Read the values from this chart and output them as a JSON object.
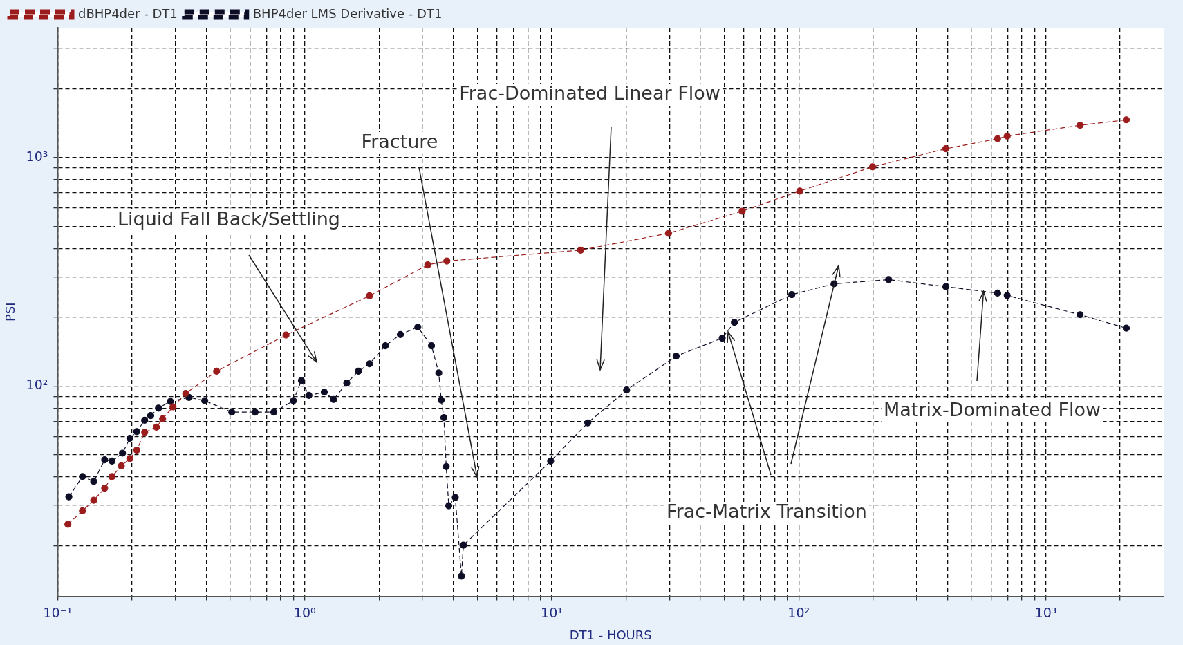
{
  "chart_data": {
    "type": "line",
    "xlabel": "DT1 - HOURS",
    "ylabel": "PSI",
    "log": "xy",
    "grid": true,
    "legend": "top left",
    "marker": "circle",
    "line_style": "dashed",
    "xlim": [
      0.1,
      3000
    ],
    "ylim": [
      12,
      3700
    ],
    "xticks": [
      {
        "value": 0.1,
        "label": "10⁻¹"
      },
      {
        "value": 0.2,
        "label": null
      },
      {
        "value": 0.3,
        "label": null
      },
      {
        "value": 0.4,
        "label": null
      },
      {
        "value": 0.5,
        "label": null
      },
      {
        "value": 0.6,
        "label": null
      },
      {
        "value": 0.7,
        "label": null
      },
      {
        "value": 0.8,
        "label": null
      },
      {
        "value": 0.9,
        "label": null
      },
      {
        "value": 1,
        "label": "10⁰"
      },
      {
        "value": 2,
        "label": null
      },
      {
        "value": 3,
        "label": null
      },
      {
        "value": 4,
        "label": null
      },
      {
        "value": 5,
        "label": null
      },
      {
        "value": 6,
        "label": null
      },
      {
        "value": 7,
        "label": null
      },
      {
        "value": 8,
        "label": null
      },
      {
        "value": 9,
        "label": null
      },
      {
        "value": 10,
        "label": "10¹"
      },
      {
        "value": 20,
        "label": null
      },
      {
        "value": 30,
        "label": null
      },
      {
        "value": 40,
        "label": null
      },
      {
        "value": 50,
        "label": null
      },
      {
        "value": 60,
        "label": null
      },
      {
        "value": 70,
        "label": null
      },
      {
        "value": 80,
        "label": null
      },
      {
        "value": 90,
        "label": null
      },
      {
        "value": 100,
        "label": "10²"
      },
      {
        "value": 200,
        "label": null
      },
      {
        "value": 300,
        "label": null
      },
      {
        "value": 400,
        "label": null
      },
      {
        "value": 500,
        "label": null
      },
      {
        "value": 600,
        "label": null
      },
      {
        "value": 700,
        "label": null
      },
      {
        "value": 800,
        "label": null
      },
      {
        "value": 900,
        "label": null
      },
      {
        "value": 1000,
        "label": "10³"
      },
      {
        "value": 2000,
        "label": null
      }
    ],
    "yticks": [
      {
        "value": 20,
        "label": null
      },
      {
        "value": 30,
        "label": null
      },
      {
        "value": 40,
        "label": null
      },
      {
        "value": 50,
        "label": null
      },
      {
        "value": 60,
        "label": null
      },
      {
        "value": 70,
        "label": null
      },
      {
        "value": 80,
        "label": null
      },
      {
        "value": 90,
        "label": null
      },
      {
        "value": 100,
        "label": "10²"
      },
      {
        "value": 200,
        "label": null
      },
      {
        "value": 300,
        "label": null
      },
      {
        "value": 400,
        "label": null
      },
      {
        "value": 500,
        "label": null
      },
      {
        "value": 600,
        "label": null
      },
      {
        "value": 700,
        "label": null
      },
      {
        "value": 800,
        "label": null
      },
      {
        "value": 900,
        "label": null
      },
      {
        "value": 1000,
        "label": "10³"
      },
      {
        "value": 2000,
        "label": null
      },
      {
        "value": 3000,
        "label": null
      }
    ],
    "series": [
      {
        "name": "dBHP4der - DT1",
        "color": "#9b1c1c",
        "x": [
          0.11,
          0.126,
          0.14,
          0.155,
          0.166,
          0.181,
          0.196,
          0.209,
          0.225,
          0.251,
          0.266,
          0.293,
          0.33,
          0.44,
          0.84,
          1.83,
          3.15,
          3.76,
          13.1,
          29.7,
          59,
          101,
          199,
          394,
          638,
          698,
          1377,
          2118
        ],
        "values": [
          24.8,
          28.4,
          31.6,
          35.7,
          40.1,
          44.7,
          48.1,
          52.4,
          62.7,
          66,
          71.8,
          81,
          92.8,
          116,
          167,
          248,
          339,
          352,
          393,
          466,
          582,
          713,
          910,
          1092,
          1208,
          1241,
          1384,
          1462
        ]
      },
      {
        "name": "BHP4der LMS Derivative - DT1",
        "color": "#0d0d26",
        "x": [
          0.111,
          0.126,
          0.14,
          0.155,
          0.166,
          0.183,
          0.196,
          0.209,
          0.225,
          0.238,
          0.256,
          0.286,
          0.34,
          0.394,
          0.507,
          0.63,
          0.75,
          0.9,
          0.97,
          1.04,
          1.2,
          1.31,
          1.48,
          1.65,
          1.83,
          2.12,
          2.44,
          2.87,
          3.26,
          3.49,
          3.57,
          3.66,
          3.74,
          3.83,
          4.07,
          4.31,
          4.39,
          9.9,
          14,
          20.1,
          31.9,
          49,
          54.9,
          93.7,
          139,
          231,
          394,
          638,
          698,
          1377,
          2118
        ],
        "values": [
          32.7,
          40.1,
          38.2,
          47.5,
          46.9,
          50.8,
          59,
          63.1,
          70.8,
          74.2,
          80,
          85.6,
          89.1,
          86.2,
          76.8,
          76.8,
          76.8,
          86.2,
          105.6,
          91,
          94,
          87.3,
          103,
          116,
          125,
          150,
          168,
          181,
          150,
          114,
          86.8,
          72.7,
          44.4,
          29.9,
          32.5,
          14.7,
          20.1,
          46.9,
          68.9,
          96,
          135,
          162,
          190,
          251,
          280,
          292,
          272,
          255,
          249,
          205,
          179
        ]
      }
    ],
    "annotations": [
      "Liquid Fall Back/Settling",
      "Fracture",
      "Frac-Dominated Linear Flow",
      "Frac-Matrix Transition",
      {
        "text": "Matrix-Dominated Flow",
        "x": 560,
        "y": 260
      }
    ]
  }
}
